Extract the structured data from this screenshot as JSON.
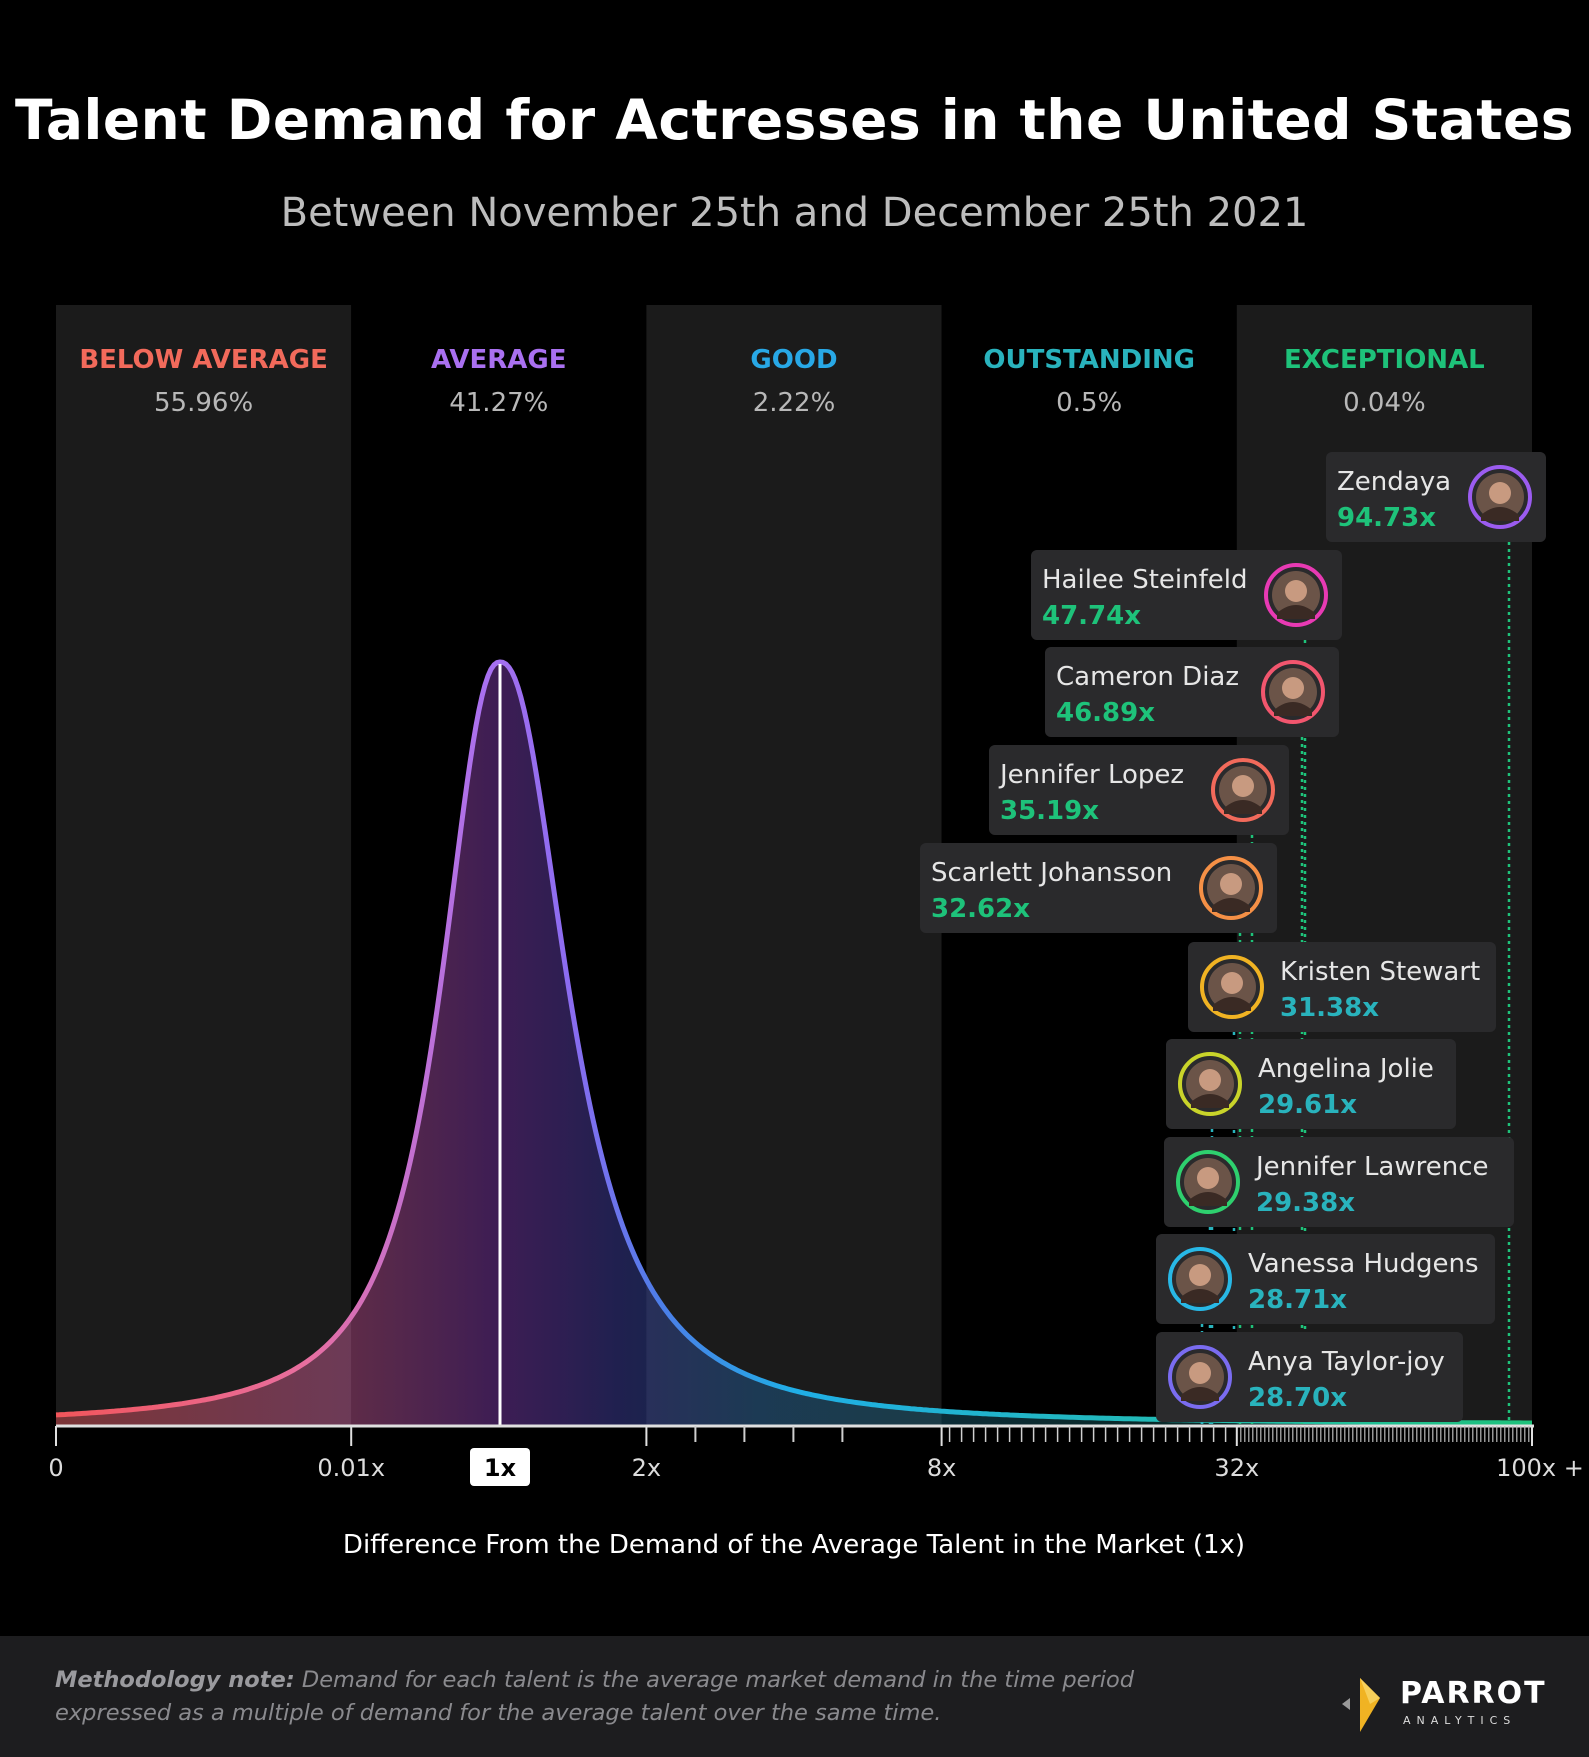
{
  "title": "Talent Demand for Actresses in the United States",
  "subtitle": "Between November 25th and December 25th 2021",
  "chart_data": {
    "type": "area",
    "title": "Talent Demand for Actresses in the United States",
    "subtitle": "Between November 25th and December 25th 2021",
    "xlabel": "Difference From the Demand of the Average Talent in the Market (1x)",
    "ylabel": "",
    "x_ticks": [
      "0",
      "0.01x",
      "1x",
      "2x",
      "8x",
      "32x",
      "100x +"
    ],
    "highlighted_tick": "1x",
    "bands": [
      {
        "name": "BELOW AVERAGE",
        "share": "55.96%",
        "color": "#f26a5b"
      },
      {
        "name": "AVERAGE",
        "share": "41.27%",
        "color": "#a970f0"
      },
      {
        "name": "GOOD",
        "share": "2.22%",
        "color": "#28a8e6"
      },
      {
        "name": "OUTSTANDING",
        "share": "0.5%",
        "color": "#29b3bd"
      },
      {
        "name": "EXCEPTIONAL",
        "share": "0.04%",
        "color": "#1ec27a"
      }
    ],
    "talents": [
      {
        "name": "Zendaya",
        "demand": "94.73x",
        "value": 94.73,
        "tier": "EXCEPTIONAL",
        "ring": "#9b5cf0"
      },
      {
        "name": "Hailee Steinfeld",
        "demand": "47.74x",
        "value": 47.74,
        "tier": "EXCEPTIONAL",
        "ring": "#e83ab4"
      },
      {
        "name": "Cameron Diaz",
        "demand": "46.89x",
        "value": 46.89,
        "tier": "EXCEPTIONAL",
        "ring": "#f2566e"
      },
      {
        "name": "Jennifer Lopez",
        "demand": "35.19x",
        "value": 35.19,
        "tier": "EXCEPTIONAL",
        "ring": "#f26a5b"
      },
      {
        "name": "Scarlett Johansson",
        "demand": "32.62x",
        "value": 32.62,
        "tier": "EXCEPTIONAL",
        "ring": "#f59046"
      },
      {
        "name": "Kristen Stewart",
        "demand": "31.38x",
        "value": 31.38,
        "tier": "OUTSTANDING",
        "ring": "#f0b323"
      },
      {
        "name": "Angelina Jolie",
        "demand": "29.61x",
        "value": 29.61,
        "tier": "OUTSTANDING",
        "ring": "#c9d42a"
      },
      {
        "name": "Jennifer Lawrence",
        "demand": "29.38x",
        "value": 29.38,
        "tier": "OUTSTANDING",
        "ring": "#2ed06e"
      },
      {
        "name": "Vanessa Hudgens",
        "demand": "28.71x",
        "value": 28.71,
        "tier": "OUTSTANDING",
        "ring": "#28b8e6"
      },
      {
        "name": "Anya Taylor-joy",
        "demand": "28.70x",
        "value": 28.7,
        "tier": "OUTSTANDING",
        "ring": "#7a6cf0"
      }
    ],
    "colors": {
      "exceptional_text": "#1ec27a",
      "outstanding_text": "#29b3bd",
      "panel": "#1b1b1b",
      "card": "#2a2a2c"
    }
  },
  "footer": {
    "note_label": "Methodology note:",
    "note_text": "Demand for each talent is the average market demand in the time period expressed as a multiple of demand for the average talent over the same time.",
    "logo_word": "PARROT",
    "logo_sub": "ANALYTICS"
  }
}
